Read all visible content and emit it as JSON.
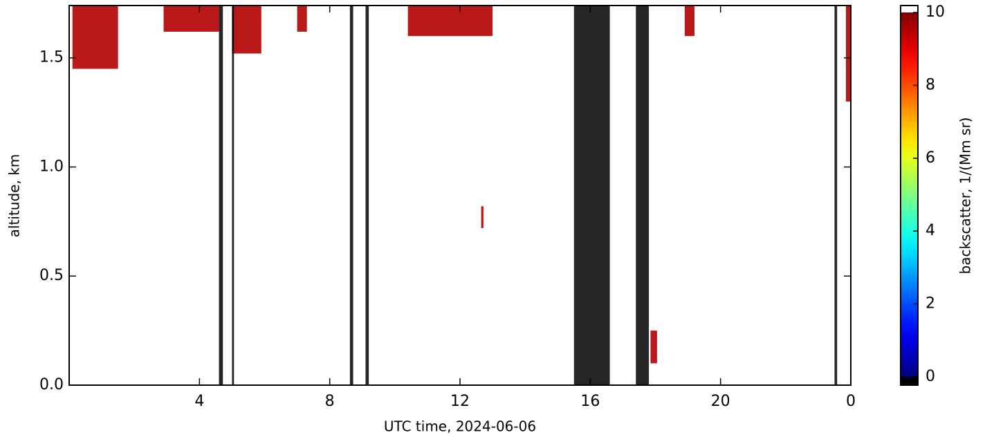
{
  "chart_data": {
    "type": "heatmap",
    "xlabel": "UTC time,  2024-06-06",
    "ylabel": "altitude, km",
    "colorbar_label": "backscatter, 1/(Mm sr)",
    "colormap": "jet",
    "under_color": "#000000",
    "over_color": "#ffffff",
    "xlim": [
      0,
      24
    ],
    "xticks": [
      4,
      8,
      12,
      16,
      20,
      {
        "value": 24,
        "label": "0"
      }
    ],
    "ylim": [
      0,
      1.74
    ],
    "yticks": [
      {
        "value": 0,
        "label": "0.0"
      },
      0.5,
      {
        "value": 1,
        "label": "1.0"
      },
      1.5
    ],
    "clim": [
      0,
      10
    ],
    "cticks": [
      0,
      2,
      4,
      6,
      8,
      10
    ],
    "cells": [
      {
        "x0": 0.1,
        "x1": 1.5,
        "y0": 1.45,
        "y1": 1.74,
        "value": 9.5
      },
      {
        "x0": 2.9,
        "x1": 4.6,
        "y0": 1.62,
        "y1": 1.74,
        "value": 9.5
      },
      {
        "x0": 5.0,
        "x1": 5.9,
        "y0": 1.52,
        "y1": 1.74,
        "value": 9.5
      },
      {
        "x0": 7.0,
        "x1": 7.3,
        "y0": 1.62,
        "y1": 1.74,
        "value": 9.5
      },
      {
        "x0": 10.4,
        "x1": 13.0,
        "y0": 1.6,
        "y1": 1.74,
        "value": 9.5
      },
      {
        "x0": 18.9,
        "x1": 19.2,
        "y0": 1.6,
        "y1": 1.74,
        "value": 9.5
      },
      {
        "x0": 23.85,
        "x1": 24,
        "y0": 1.3,
        "y1": 1.74,
        "value": 9.5
      },
      {
        "x0": 12.65,
        "x1": 12.72,
        "y0": 0.72,
        "y1": 0.82,
        "value": 9.5
      },
      {
        "x0": 17.85,
        "x1": 18.05,
        "y0": 0.1,
        "y1": 0.25,
        "value": 9.5
      },
      {
        "x0": 15.5,
        "x1": 16.6,
        "y0": 0,
        "y1": 1.74,
        "value": -1
      },
      {
        "x0": 17.4,
        "x1": 17.8,
        "y0": 0,
        "y1": 1.74,
        "value": -1
      },
      {
        "x0": 4.6,
        "x1": 4.72,
        "y0": 0,
        "y1": 1.74,
        "value": -1
      },
      {
        "x0": 5.0,
        "x1": 5.06,
        "y0": 0,
        "y1": 1.74,
        "value": -1
      },
      {
        "x0": 8.62,
        "x1": 8.72,
        "y0": 0,
        "y1": 1.74,
        "value": -1
      },
      {
        "x0": 9.1,
        "x1": 9.2,
        "y0": 0,
        "y1": 1.74,
        "value": -1
      },
      {
        "x0": 23.5,
        "x1": 23.58,
        "y0": 0,
        "y1": 1.74,
        "value": -1
      }
    ]
  }
}
